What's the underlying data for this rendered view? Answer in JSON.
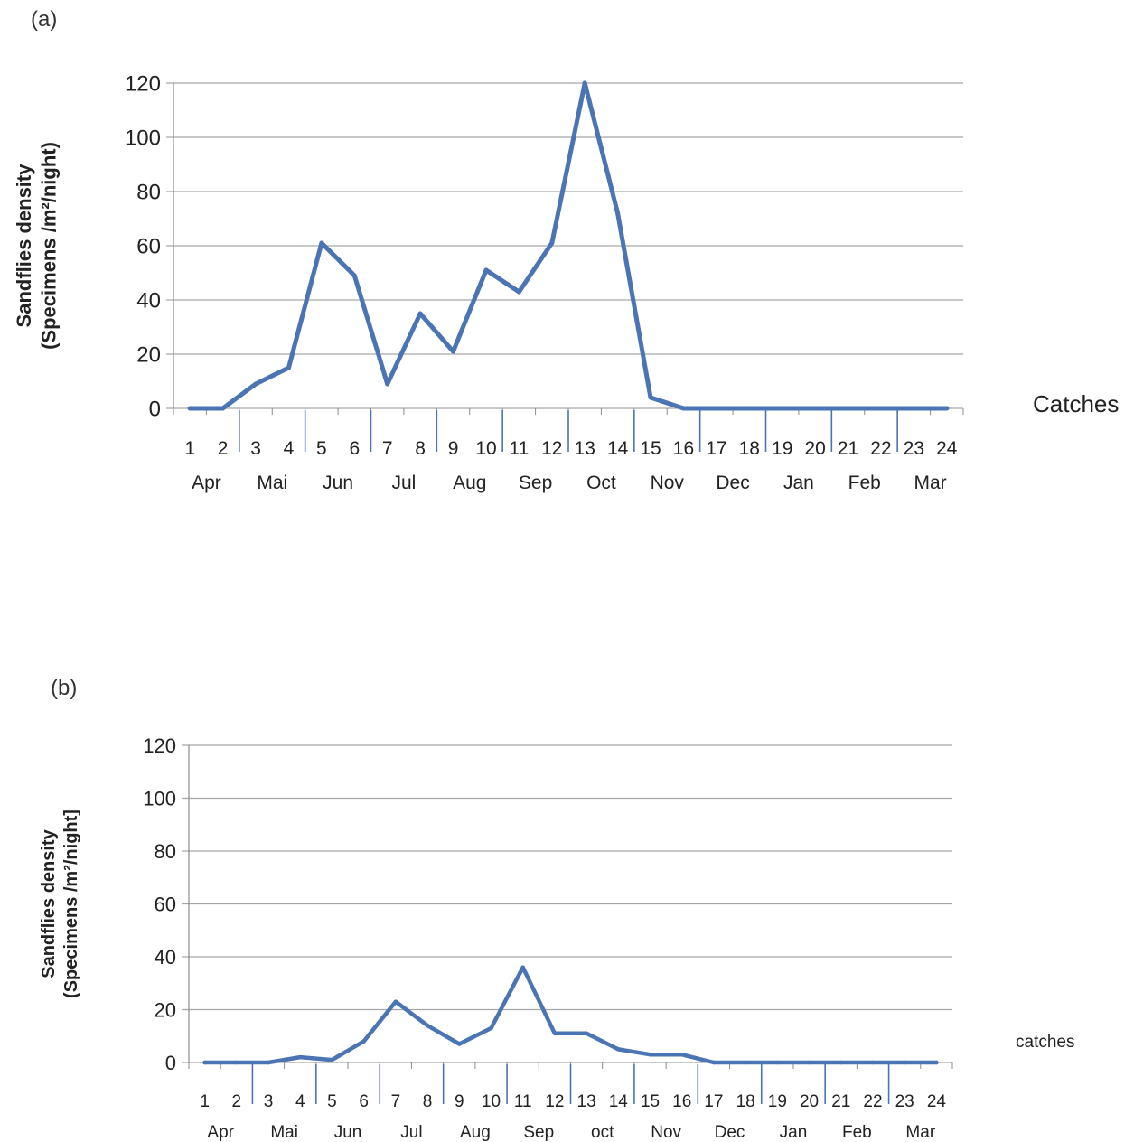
{
  "chart_data": [
    {
      "type": "line",
      "panel_label": "(a)",
      "ylabel_line1": "Sandflies density",
      "ylabel_line2": "(Specimens /m²/night)",
      "xaxis_caption": "Catches",
      "ylim": [
        0,
        120
      ],
      "yticks": [
        "0",
        "20",
        "40",
        "60",
        "80",
        "100",
        "120"
      ],
      "categories": [
        "1",
        "2",
        "3",
        "4",
        "5",
        "6",
        "7",
        "8",
        "9",
        "10",
        "11",
        "12",
        "13",
        "14",
        "15",
        "16",
        "17",
        "18",
        "19",
        "20",
        "21",
        "22",
        "23",
        "24"
      ],
      "months": [
        "Apr",
        "Mai",
        "Jun",
        "Jul",
        "Aug",
        "Sep",
        "Oct",
        "Nov",
        "Dec",
        "Jan",
        "Feb",
        "Mar"
      ],
      "values": [
        0,
        0,
        9,
        15,
        61,
        49,
        9,
        35,
        21,
        51,
        43,
        61,
        120,
        72,
        4,
        0,
        0,
        0,
        0,
        0,
        0,
        0,
        0,
        0
      ],
      "color": "#4a74b3",
      "grid": true,
      "legend": "none"
    },
    {
      "type": "line",
      "panel_label": "(b)",
      "ylabel_line1": "Sandflies density",
      "ylabel_line2": "(Specimens /m²/night]",
      "xaxis_caption": "catches",
      "ylim": [
        0,
        120
      ],
      "yticks": [
        "0",
        "20",
        "40",
        "60",
        "80",
        "100",
        "120"
      ],
      "categories": [
        "1",
        "2",
        "3",
        "4",
        "5",
        "6",
        "7",
        "8",
        "9",
        "10",
        "11",
        "12",
        "13",
        "14",
        "15",
        "16",
        "17",
        "18",
        "19",
        "20",
        "21",
        "22",
        "23",
        "24"
      ],
      "months": [
        "Apr",
        "Mai",
        "Jun",
        "Jul",
        "Aug",
        "Sep",
        "oct",
        "Nov",
        "Dec",
        "Jan",
        "Feb",
        "Mar"
      ],
      "values": [
        0,
        0,
        0,
        2,
        1,
        8,
        23,
        14,
        7,
        13,
        36,
        11,
        11,
        5,
        3,
        3,
        0,
        0,
        0,
        0,
        0,
        0,
        0,
        0
      ],
      "color": "#4a74b3",
      "grid": true,
      "legend": "none"
    }
  ]
}
